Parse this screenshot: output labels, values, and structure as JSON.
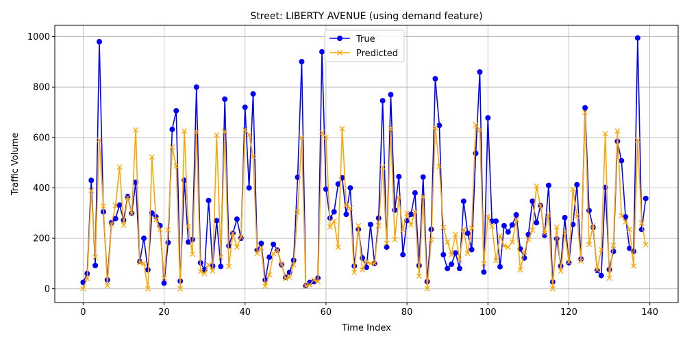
{
  "chart_data": {
    "type": "line",
    "title": "Street: LIBERTY AVENUE (using demand feature)",
    "xlabel": "Time Index",
    "ylabel": "Traffic Volume",
    "xlim": [
      -7,
      147
    ],
    "ylim": [
      -55,
      1045
    ],
    "xticks": [
      0,
      20,
      40,
      60,
      80,
      100,
      120,
      140
    ],
    "yticks": [
      0,
      200,
      400,
      600,
      800,
      1000
    ],
    "grid": true,
    "legend_position": "upper center",
    "series": [
      {
        "name": "True",
        "color": "#0000ff",
        "marker": "circle",
        "values": [
          25,
          60,
          430,
          92,
          980,
          305,
          35,
          262,
          278,
          332,
          272,
          366,
          300,
          422,
          108,
          200,
          75,
          300,
          285,
          250,
          22,
          183,
          632,
          706,
          30,
          430,
          185,
          195,
          800,
          103,
          75,
          350,
          90,
          270,
          88,
          752,
          170,
          220,
          276,
          200,
          720,
          400,
          773,
          152,
          180,
          35,
          125,
          176,
          153,
          95,
          45,
          65,
          113,
          442,
          901,
          12,
          25,
          28,
          42,
          940,
          395,
          280,
          305,
          415,
          440,
          295,
          400,
          90,
          236,
          122,
          85,
          255,
          100,
          280,
          746,
          165,
          770,
          312,
          445,
          135,
          270,
          295,
          380,
          92,
          443,
          28,
          235,
          833,
          648,
          135,
          80,
          97,
          142,
          80,
          347,
          220,
          155,
          537,
          860,
          66,
          678,
          268,
          268,
          87,
          250,
          225,
          253,
          293,
          158,
          122,
          215,
          347,
          262,
          330,
          212,
          410,
          27,
          198,
          90,
          282,
          103,
          255,
          413,
          118,
          718,
          310,
          243,
          72,
          52,
          402,
          76,
          148,
          585,
          508,
          285,
          160,
          148,
          995,
          235,
          358
        ]
      },
      {
        "name": "Predicted",
        "color": "#ffa500",
        "marker": "x",
        "values": [
          0,
          40,
          390,
          125,
          590,
          328,
          12,
          255,
          330,
          483,
          252,
          362,
          298,
          630,
          103,
          100,
          0,
          522,
          275,
          235,
          42,
          233,
          562,
          487,
          0,
          625,
          247,
          137,
          622,
          68,
          60,
          95,
          70,
          610,
          125,
          623,
          88,
          220,
          165,
          205,
          630,
          610,
          525,
          140,
          163,
          10,
          55,
          140,
          153,
          98,
          40,
          45,
          95,
          305,
          600,
          10,
          15,
          35,
          28,
          620,
          600,
          245,
          268,
          165,
          635,
          330,
          320,
          65,
          250,
          75,
          108,
          100,
          100,
          250,
          483,
          180,
          635,
          195,
          363,
          232,
          300,
          253,
          305,
          50,
          365,
          0,
          195,
          640,
          485,
          243,
          185,
          135,
          215,
          117,
          235,
          140,
          240,
          650,
          630,
          100,
          287,
          248,
          112,
          210,
          170,
          165,
          185,
          275,
          75,
          145,
          195,
          232,
          407,
          328,
          220,
          293,
          0,
          245,
          70,
          225,
          105,
          395,
          288,
          110,
          700,
          175,
          250,
          75,
          155,
          615,
          42,
          172,
          625,
          290,
          265,
          235,
          90,
          590,
          260,
          175
        ]
      }
    ]
  }
}
